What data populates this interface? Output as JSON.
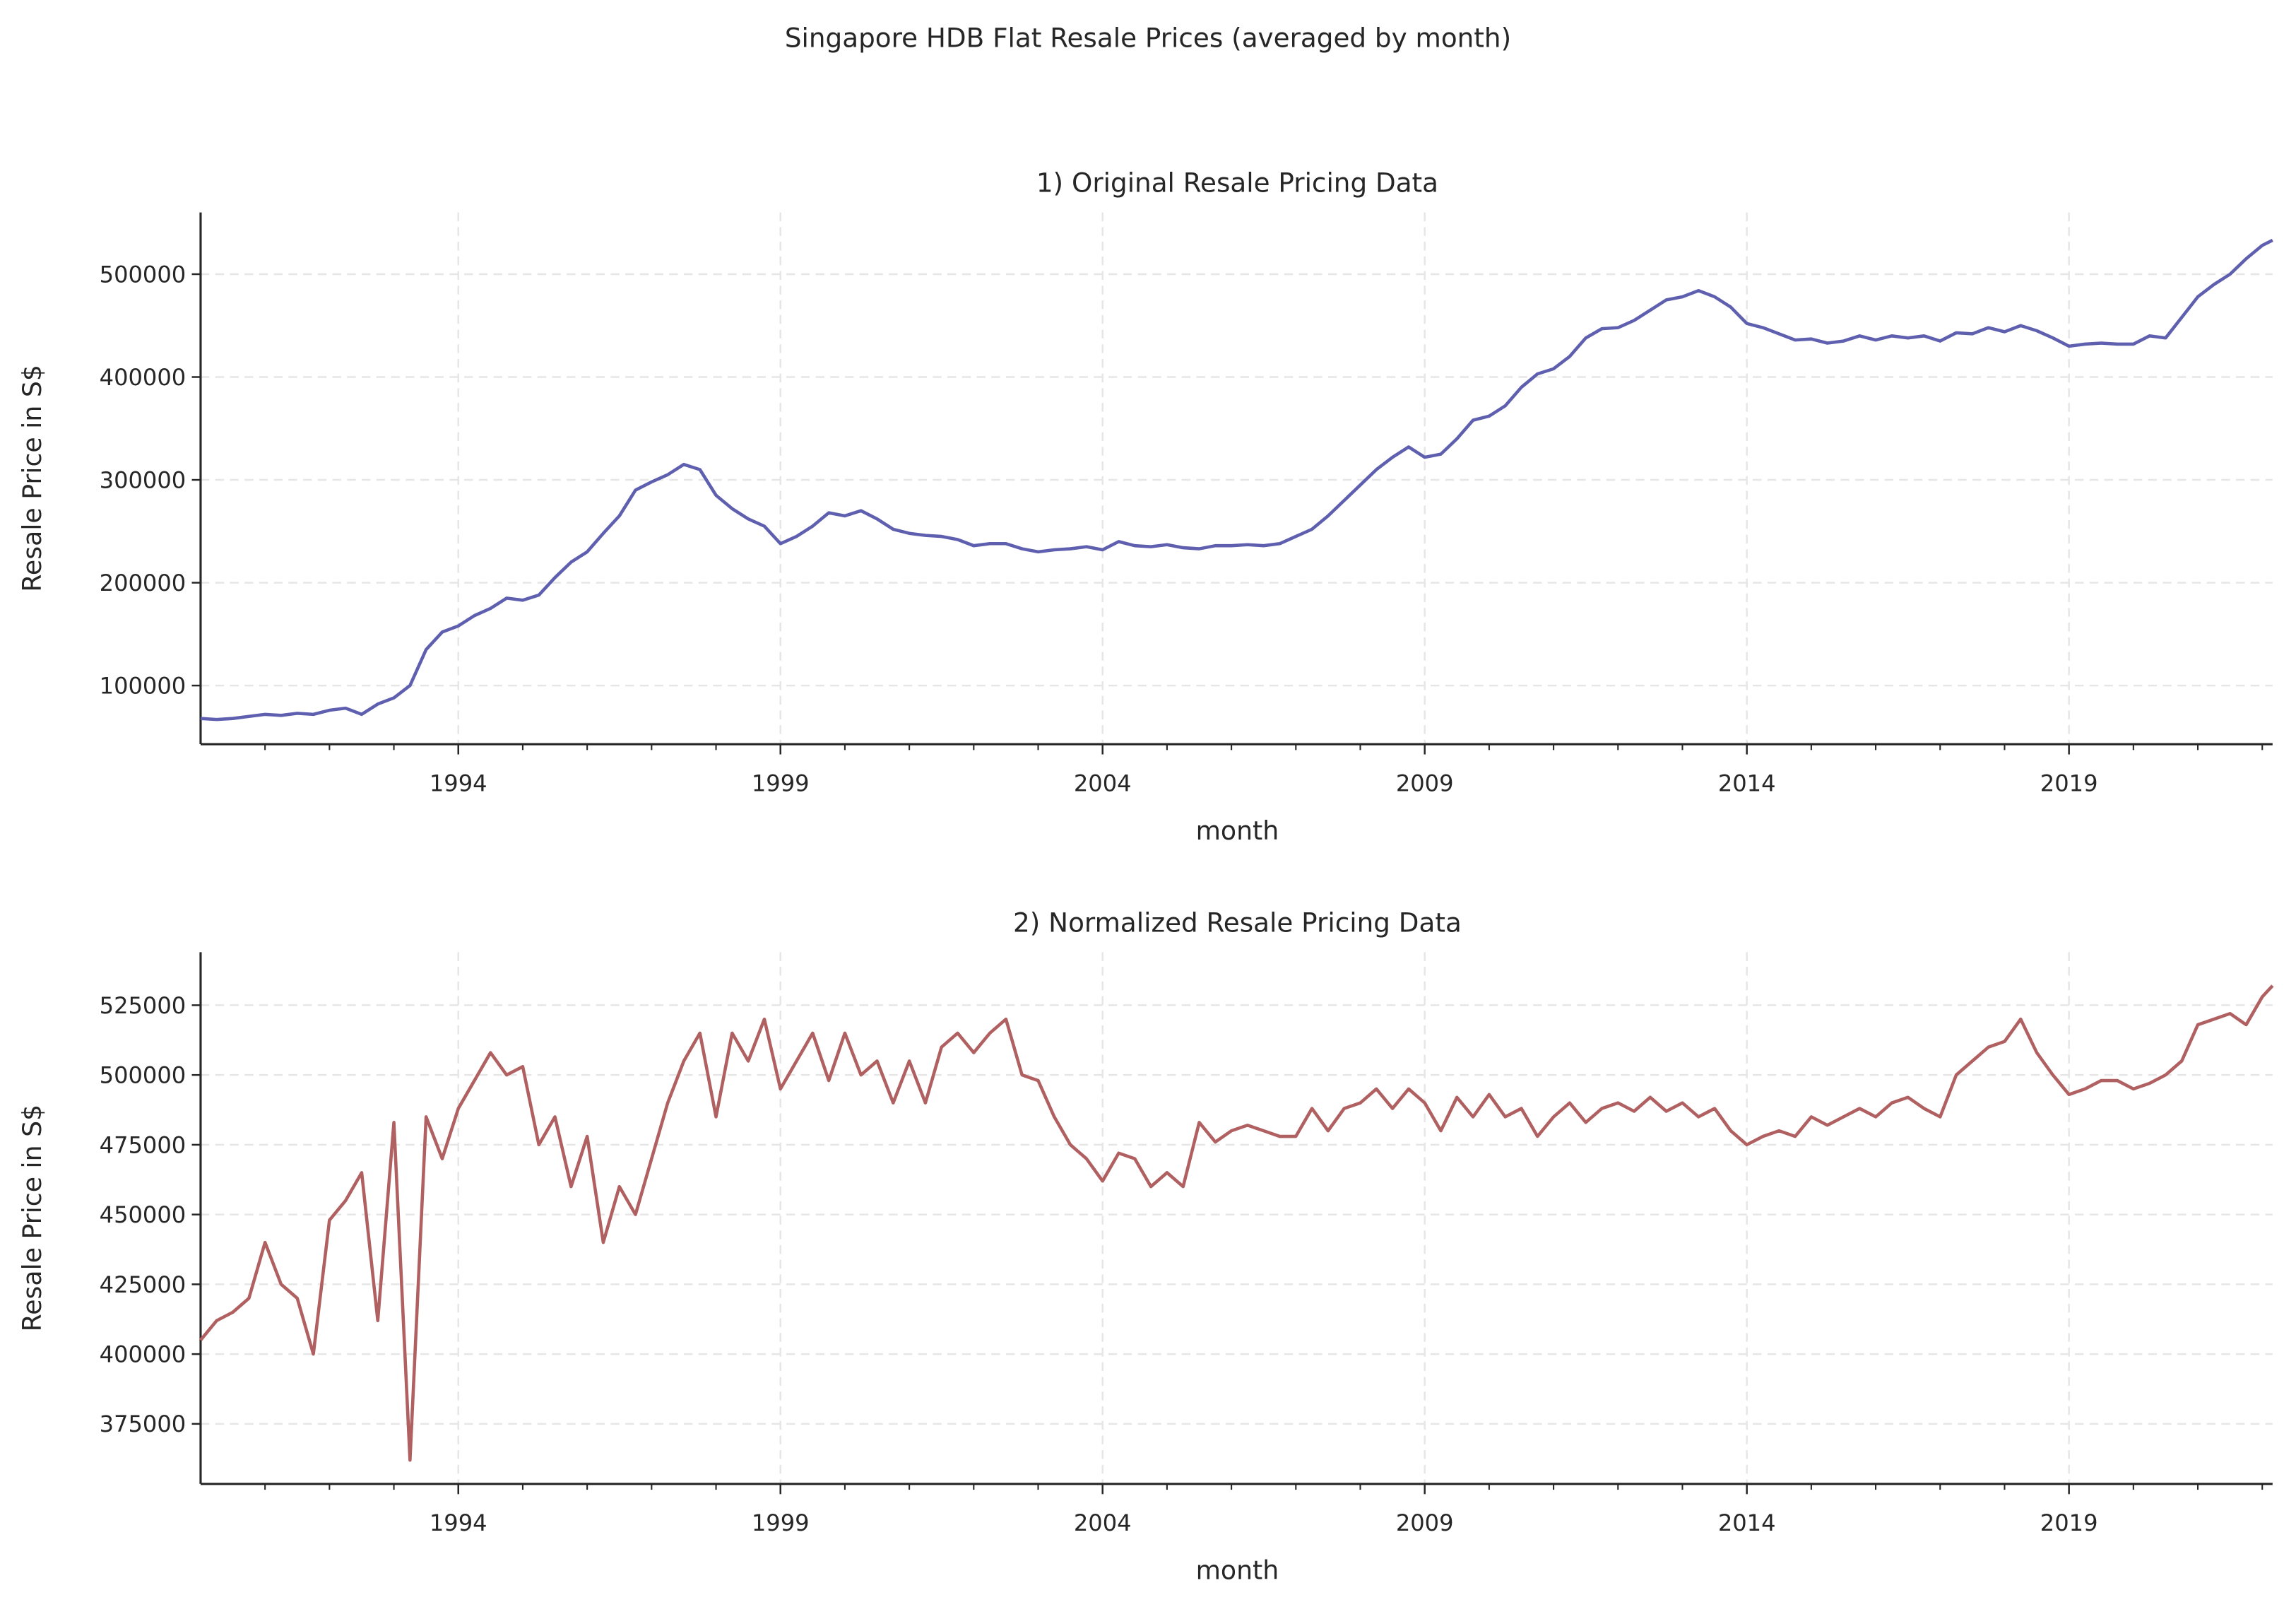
{
  "title": "Singapore HDB Flat Resale Prices (averaged by month)",
  "chart_data": [
    {
      "type": "line",
      "title": "1)  Original Resale Pricing Data",
      "x_label": "month",
      "y_label": "Resale Price in S$",
      "x": [
        1990,
        1990.25,
        1990.5,
        1990.75,
        1991,
        1991.25,
        1991.5,
        1991.75,
        1992,
        1992.25,
        1992.5,
        1992.75,
        1993,
        1993.25,
        1993.5,
        1993.75,
        1994,
        1994.25,
        1994.5,
        1994.75,
        1995,
        1995.25,
        1995.5,
        1995.75,
        1996,
        1996.25,
        1996.5,
        1996.75,
        1997,
        1997.25,
        1997.5,
        1997.75,
        1998,
        1998.25,
        1998.5,
        1998.75,
        1999,
        1999.25,
        1999.5,
        1999.75,
        2000,
        2000.25,
        2000.5,
        2000.75,
        2001,
        2001.25,
        2001.5,
        2001.75,
        2002,
        2002.25,
        2002.5,
        2002.75,
        2003,
        2003.25,
        2003.5,
        2003.75,
        2004,
        2004.25,
        2004.5,
        2004.75,
        2005,
        2005.25,
        2005.5,
        2005.75,
        2006,
        2006.25,
        2006.5,
        2006.75,
        2007,
        2007.25,
        2007.5,
        2007.75,
        2008,
        2008.25,
        2008.5,
        2008.75,
        2009,
        2009.25,
        2009.5,
        2009.75,
        2010,
        2010.25,
        2010.5,
        2010.75,
        2011,
        2011.25,
        2011.5,
        2011.75,
        2012,
        2012.25,
        2012.5,
        2012.75,
        2013,
        2013.25,
        2013.5,
        2013.75,
        2014,
        2014.25,
        2014.5,
        2014.75,
        2015,
        2015.25,
        2015.5,
        2015.75,
        2016,
        2016.25,
        2016.5,
        2016.75,
        2017,
        2017.25,
        2017.5,
        2017.75,
        2018,
        2018.25,
        2018.5,
        2018.75,
        2019,
        2019.25,
        2019.5,
        2019.75,
        2020,
        2020.25,
        2020.5,
        2020.75,
        2021,
        2021.25,
        2021.5,
        2021.75,
        2022,
        2022.16
      ],
      "series": [
        {
          "color": "#5f5fb0",
          "values": [
            68000,
            67000,
            68000,
            70000,
            72000,
            71000,
            73000,
            72000,
            76000,
            78000,
            72000,
            82000,
            88000,
            100000,
            135000,
            152000,
            158000,
            168000,
            175000,
            185000,
            183000,
            188000,
            205000,
            220000,
            230000,
            248000,
            265000,
            290000,
            298000,
            305000,
            315000,
            310000,
            285000,
            272000,
            262000,
            255000,
            238000,
            245000,
            255000,
            268000,
            265000,
            270000,
            262000,
            252000,
            248000,
            246000,
            245000,
            242000,
            236000,
            238000,
            238000,
            233000,
            230000,
            232000,
            233000,
            235000,
            232000,
            240000,
            236000,
            235000,
            237000,
            234000,
            233000,
            236000,
            236000,
            237000,
            236000,
            238000,
            245000,
            252000,
            265000,
            280000,
            295000,
            310000,
            322000,
            332000,
            322000,
            325000,
            340000,
            358000,
            362000,
            372000,
            390000,
            403000,
            408000,
            420000,
            438000,
            447000,
            448000,
            455000,
            465000,
            475000,
            478000,
            484000,
            478000,
            468000,
            452000,
            448000,
            442000,
            436000,
            437000,
            433000,
            435000,
            440000,
            436000,
            440000,
            438000,
            440000,
            435000,
            443000,
            442000,
            448000,
            444000,
            450000,
            445000,
            438000,
            430000,
            432000,
            433000,
            432000,
            432000,
            440000,
            438000,
            458000,
            478000,
            490000,
            500000,
            515000,
            528000,
            533000
          ]
        }
      ],
      "xlim": [
        1990,
        2022.16
      ],
      "xticks": [
        1994,
        1999,
        2004,
        2009,
        2014,
        2019
      ],
      "xminorticks": [
        1991,
        1992,
        1993,
        1995,
        1996,
        1997,
        1998,
        2000,
        2001,
        2002,
        2003,
        2005,
        2006,
        2007,
        2008,
        2010,
        2011,
        2012,
        2013,
        2015,
        2016,
        2017,
        2018,
        2020,
        2021,
        2022
      ],
      "ylim": [
        43000,
        560000
      ],
      "yticks": [
        100000,
        200000,
        300000,
        400000,
        500000
      ],
      "grid": true
    },
    {
      "type": "line",
      "title": "2)  Normalized Resale Pricing Data",
      "x_label": "month",
      "y_label": "Resale Price in S$",
      "x": [
        1990,
        1990.25,
        1990.5,
        1990.75,
        1991,
        1991.25,
        1991.5,
        1991.75,
        1992,
        1992.25,
        1992.5,
        1992.75,
        1993,
        1993.25,
        1993.5,
        1993.75,
        1994,
        1994.25,
        1994.5,
        1994.75,
        1995,
        1995.25,
        1995.5,
        1995.75,
        1996,
        1996.25,
        1996.5,
        1996.75,
        1997,
        1997.25,
        1997.5,
        1997.75,
        1998,
        1998.25,
        1998.5,
        1998.75,
        1999,
        1999.25,
        1999.5,
        1999.75,
        2000,
        2000.25,
        2000.5,
        2000.75,
        2001,
        2001.25,
        2001.5,
        2001.75,
        2002,
        2002.25,
        2002.5,
        2002.75,
        2003,
        2003.25,
        2003.5,
        2003.75,
        2004,
        2004.25,
        2004.5,
        2004.75,
        2005,
        2005.25,
        2005.5,
        2005.75,
        2006,
        2006.25,
        2006.5,
        2006.75,
        2007,
        2007.25,
        2007.5,
        2007.75,
        2008,
        2008.25,
        2008.5,
        2008.75,
        2009,
        2009.25,
        2009.5,
        2009.75,
        2010,
        2010.25,
        2010.5,
        2010.75,
        2011,
        2011.25,
        2011.5,
        2011.75,
        2012,
        2012.25,
        2012.5,
        2012.75,
        2013,
        2013.25,
        2013.5,
        2013.75,
        2014,
        2014.25,
        2014.5,
        2014.75,
        2015,
        2015.25,
        2015.5,
        2015.75,
        2016,
        2016.25,
        2016.5,
        2016.75,
        2017,
        2017.25,
        2017.5,
        2017.75,
        2018,
        2018.25,
        2018.5,
        2018.75,
        2019,
        2019.25,
        2019.5,
        2019.75,
        2020,
        2020.25,
        2020.5,
        2020.75,
        2021,
        2021.25,
        2021.5,
        2021.75,
        2022,
        2022.16
      ],
      "series": [
        {
          "color": "#b06060",
          "values": [
            405000,
            412000,
            415000,
            420000,
            440000,
            425000,
            420000,
            400000,
            448000,
            455000,
            465000,
            412000,
            483000,
            362000,
            485000,
            470000,
            488000,
            498000,
            508000,
            500000,
            503000,
            475000,
            485000,
            460000,
            478000,
            440000,
            460000,
            450000,
            470000,
            490000,
            505000,
            515000,
            485000,
            515000,
            505000,
            520000,
            495000,
            505000,
            515000,
            498000,
            515000,
            500000,
            505000,
            490000,
            505000,
            490000,
            510000,
            515000,
            508000,
            515000,
            520000,
            500000,
            498000,
            485000,
            475000,
            470000,
            462000,
            472000,
            470000,
            460000,
            465000,
            460000,
            483000,
            476000,
            480000,
            482000,
            480000,
            478000,
            478000,
            488000,
            480000,
            488000,
            490000,
            495000,
            488000,
            495000,
            490000,
            480000,
            492000,
            485000,
            493000,
            485000,
            488000,
            478000,
            485000,
            490000,
            483000,
            488000,
            490000,
            487000,
            492000,
            487000,
            490000,
            485000,
            488000,
            480000,
            475000,
            478000,
            480000,
            478000,
            485000,
            482000,
            485000,
            488000,
            485000,
            490000,
            492000,
            488000,
            485000,
            500000,
            505000,
            510000,
            512000,
            520000,
            508000,
            500000,
            493000,
            495000,
            498000,
            498000,
            495000,
            497000,
            500000,
            505000,
            518000,
            520000,
            522000,
            518000,
            528000,
            532000
          ]
        }
      ],
      "xlim": [
        1990,
        2022.16
      ],
      "xticks": [
        1994,
        1999,
        2004,
        2009,
        2014,
        2019
      ],
      "xminorticks": [
        1991,
        1992,
        1993,
        1995,
        1996,
        1997,
        1998,
        2000,
        2001,
        2002,
        2003,
        2005,
        2006,
        2007,
        2008,
        2010,
        2011,
        2012,
        2013,
        2015,
        2016,
        2017,
        2018,
        2020,
        2021,
        2022
      ],
      "ylim": [
        353500,
        544000
      ],
      "yticks": [
        375000,
        400000,
        425000,
        450000,
        475000,
        500000,
        525000
      ],
      "grid": true
    }
  ]
}
